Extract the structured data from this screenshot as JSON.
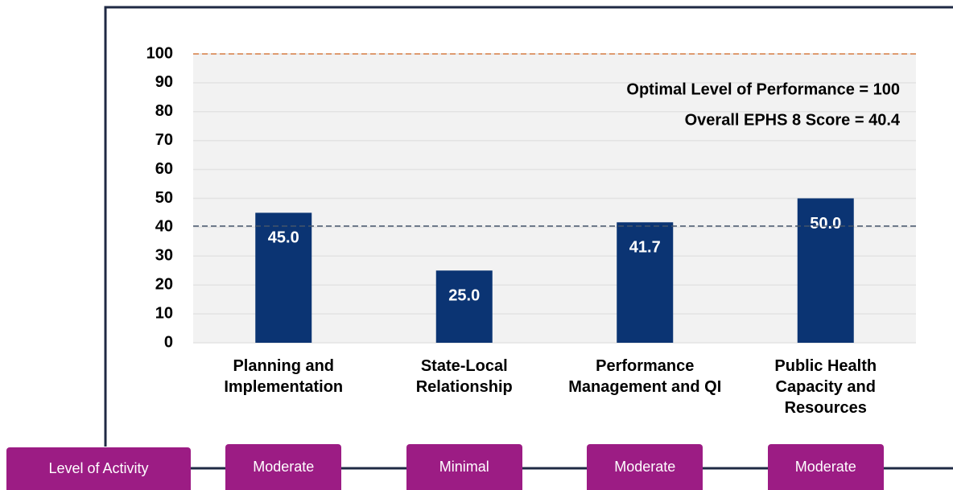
{
  "chart_data": {
    "type": "bar",
    "categories": [
      "Planning and Implementation",
      "State-Local Relationship",
      "Performance Management and QI",
      "Public Health Capacity and Resources"
    ],
    "values": [
      45.0,
      25.0,
      41.7,
      50.0
    ],
    "value_labels": [
      "45.0",
      "25.0",
      "41.7",
      "50.0"
    ],
    "color": "#0b3473",
    "ylim": [
      0,
      100
    ],
    "yticks": [
      0,
      10,
      20,
      30,
      40,
      50,
      60,
      70,
      80,
      90,
      100
    ],
    "grid": true,
    "reference_lines": [
      {
        "value": 100,
        "color": "#d98046"
      },
      {
        "value": 40.4,
        "color": "#44546a"
      }
    ],
    "annotations": [
      "Optimal Level of Performance = 100",
      "Overall EPHS 8 Score = 40.4"
    ]
  },
  "activity": {
    "label": "Level of Activity",
    "levels": [
      "Moderate",
      "Minimal",
      "Moderate",
      "Moderate"
    ],
    "color": "#9c1c84"
  }
}
